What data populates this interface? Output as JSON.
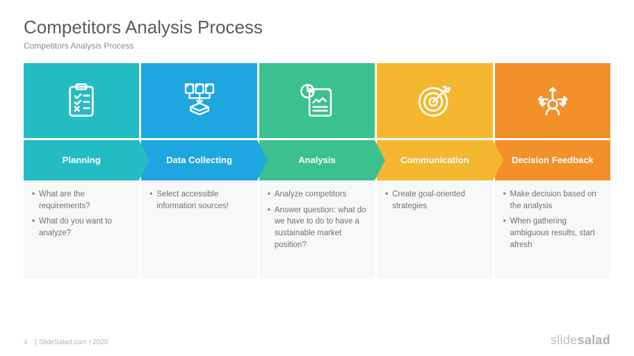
{
  "title": "Competitors Analysis Process",
  "subtitle": "Competitors Analysis Process",
  "page_number": "4",
  "footer_text": "| SlideSalad.com | 2020",
  "brand_light": "slide",
  "brand_bold": "salad",
  "columns": [
    {
      "label": "Planning",
      "icon": "clipboard",
      "color": "#24bcc4",
      "bullets": [
        "What are the requirements?",
        "What do you want to analyze?"
      ]
    },
    {
      "label": "Data Collecting",
      "icon": "data-collect",
      "color": "#1ea6e0",
      "bullets": [
        "Select accessible information sources!"
      ]
    },
    {
      "label": "Analysis",
      "icon": "analysis",
      "color": "#3bc18f",
      "bullets": [
        "Analyze competitors",
        "Answer question: what do we have to do to have a sustainable market position?"
      ]
    },
    {
      "label": "Communication",
      "icon": "target",
      "color": "#f5b72f",
      "bullets": [
        "Create goal-oriented strategies"
      ]
    },
    {
      "label": "Decision Feedback",
      "icon": "decision",
      "color": "#f2902a",
      "bullets": [
        "Make decision based on the analysis",
        "When gathering ambiguous results, start afresh"
      ]
    }
  ],
  "bullet_bg": "#f7f8f8",
  "bullet_text_color": "#6d7073"
}
